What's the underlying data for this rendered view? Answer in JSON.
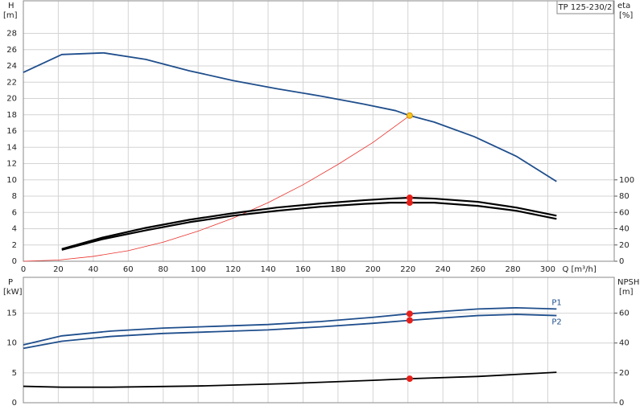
{
  "chart_data": [
    {
      "type": "line",
      "title": "TP 125-230/2",
      "ylabel": "H",
      "yunit": "[m]",
      "y2label": "eta",
      "y2unit": "[%]",
      "xlabel": "Q [m³/h]",
      "xlim": [
        0,
        338
      ],
      "xticks": [
        0,
        20,
        40,
        60,
        80,
        100,
        120,
        140,
        160,
        180,
        200,
        220,
        240,
        260,
        280,
        300
      ],
      "ylim": [
        0,
        32
      ],
      "yticks": [
        0,
        2,
        4,
        6,
        8,
        10,
        12,
        14,
        16,
        18,
        20,
        22,
        24,
        26,
        28
      ],
      "y2lim": [
        0,
        320
      ],
      "y2ticks": [
        0,
        20,
        40,
        60,
        80,
        100
      ],
      "grid": true,
      "series": [
        {
          "color": "#1f4e8c",
          "x": [
            0,
            22,
            46,
            70,
            95,
            120,
            145,
            170,
            195,
            213,
            221,
            235,
            258,
            282,
            305
          ],
          "values": [
            23.2,
            25.4,
            25.6,
            24.8,
            23.4,
            22.2,
            21.2,
            20.3,
            19.3,
            18.5,
            17.9,
            17.1,
            15.3,
            12.9,
            9.8
          ]
        },
        {
          "color": "#e8302a",
          "x": [
            0,
            20,
            40,
            60,
            80,
            100,
            120,
            140,
            160,
            180,
            200,
            221
          ],
          "values": [
            0,
            0.15,
            0.6,
            1.3,
            2.35,
            3.7,
            5.3,
            7.2,
            9.4,
            11.9,
            14.6,
            17.9
          ]
        },
        {
          "color": "#000000",
          "axis": "y2",
          "x": [
            22,
            45,
            70,
            95,
            120,
            145,
            170,
            195,
            210,
            221,
            235,
            260,
            282,
            305
          ],
          "values": [
            15,
            29,
            41,
            51,
            59,
            66,
            71,
            75,
            77,
            78,
            77,
            73,
            66,
            56
          ]
        },
        {
          "color": "#000000",
          "axis": "y2",
          "x": [
            22,
            45,
            70,
            95,
            120,
            145,
            170,
            195,
            210,
            221,
            235,
            260,
            282,
            305
          ],
          "values": [
            14,
            27,
            38,
            48,
            56,
            62,
            67,
            70.5,
            72,
            72,
            72,
            68,
            62,
            52
          ]
        }
      ],
      "markers": [
        {
          "x": 221,
          "y": 17.9,
          "color": "#f7c81e"
        },
        {
          "x": 221,
          "y": 78,
          "color": "#e8201a",
          "axis": "y2"
        },
        {
          "x": 221,
          "y": 72,
          "color": "#e8201a",
          "axis": "y2"
        }
      ]
    },
    {
      "type": "line",
      "ylabel": "P",
      "yunit": "[kW]",
      "y2label": "NPSH",
      "y2unit": "[m]",
      "xlim": [
        0,
        338
      ],
      "ylim": [
        0,
        21
      ],
      "yticks": [
        0,
        5,
        10,
        15
      ],
      "y2lim": [
        0,
        84
      ],
      "y2ticks": [
        0,
        20,
        40,
        60
      ],
      "grid": true,
      "series": [
        {
          "name": "P1",
          "color": "#1f4e8c",
          "x": [
            0,
            22,
            50,
            80,
            110,
            140,
            170,
            200,
            221,
            240,
            260,
            282,
            305
          ],
          "values": [
            9.7,
            11.2,
            12.0,
            12.5,
            12.8,
            13.1,
            13.6,
            14.3,
            14.9,
            15.3,
            15.7,
            15.9,
            15.7
          ]
        },
        {
          "name": "P2",
          "color": "#1f4e8c",
          "x": [
            0,
            22,
            50,
            80,
            110,
            140,
            170,
            200,
            221,
            240,
            260,
            282,
            305
          ],
          "values": [
            9.1,
            10.3,
            11.1,
            11.6,
            11.9,
            12.2,
            12.7,
            13.3,
            13.8,
            14.2,
            14.6,
            14.8,
            14.6
          ]
        },
        {
          "color": "#000000",
          "axis": "y2",
          "x": [
            0,
            22,
            50,
            100,
            150,
            200,
            221,
            260,
            305
          ],
          "values": [
            11,
            10.4,
            10.4,
            11.2,
            12.8,
            15,
            16.1,
            17.6,
            20.4
          ]
        }
      ],
      "markers": [
        {
          "x": 221,
          "y": 14.9,
          "color": "#e8201a"
        },
        {
          "x": 221,
          "y": 13.8,
          "color": "#e8201a"
        },
        {
          "x": 221,
          "y": 16.1,
          "color": "#e8201a",
          "axis": "y2"
        }
      ]
    }
  ]
}
